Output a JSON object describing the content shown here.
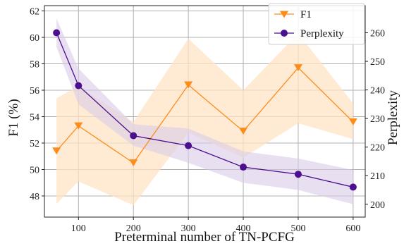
{
  "chart_data": {
    "type": "line",
    "xlabel": "Preterminal number of TN-PCFG",
    "ylabel_left": "F1 (%)",
    "ylabel_right": "Perplexity",
    "x": [
      60,
      100,
      200,
      300,
      400,
      500,
      600
    ],
    "xticks": [
      100,
      200,
      300,
      400,
      500,
      600
    ],
    "xlim": [
      38,
      622
    ],
    "ylim_left": [
      46.4,
      62.4
    ],
    "ylim_right": [
      195.5,
      269.5
    ],
    "yticks_left": [
      48,
      50,
      52,
      54,
      56,
      58,
      60,
      62
    ],
    "yticks_right": [
      200,
      210,
      220,
      230,
      240,
      250,
      260
    ],
    "grid": true,
    "legend_position": "top-right",
    "series": [
      {
        "name": "F1",
        "axis": "left",
        "color": "#ff8c1a",
        "band_color": "#ffe3c4",
        "marker": "triangle-down",
        "values": [
          51.4,
          53.3,
          50.5,
          56.4,
          52.9,
          57.7,
          53.6
        ],
        "band_lower": [
          47.4,
          49.1,
          47.3,
          52.8,
          50.9,
          53.5,
          52.3
        ],
        "band_upper": [
          55.4,
          56.3,
          53.6,
          59.9,
          56.0,
          60.3,
          55.0
        ]
      },
      {
        "name": "Perplexity",
        "axis": "right",
        "color": "#4b0f8f",
        "band_color": "#d9cbe8",
        "marker": "circle",
        "values": [
          260.0,
          241.5,
          224.0,
          220.5,
          213.0,
          210.5,
          206.0
        ],
        "band_lower": [
          255.0,
          235.0,
          220.5,
          214.5,
          207.5,
          205.0,
          200.0
        ],
        "band_upper": [
          265.0,
          247.5,
          228.0,
          226.5,
          218.5,
          216.0,
          212.0
        ]
      }
    ]
  }
}
